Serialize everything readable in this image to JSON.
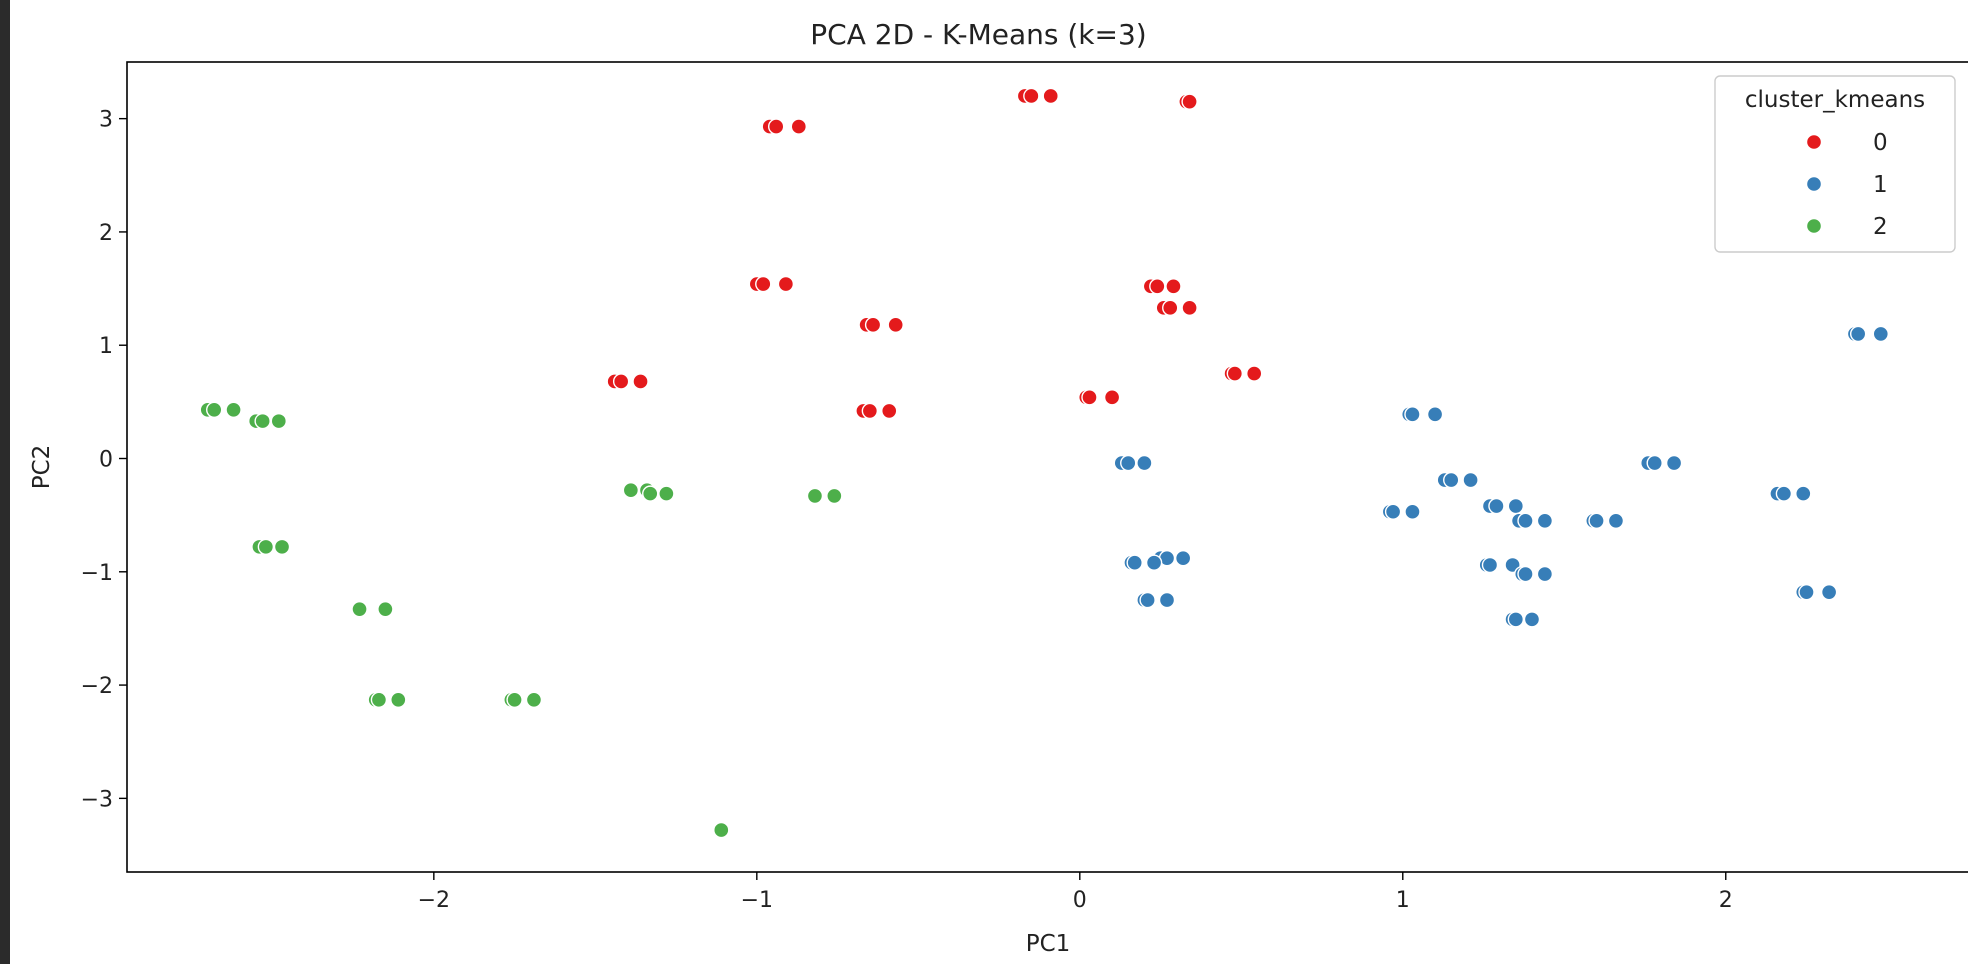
{
  "chart_data": {
    "type": "scatter",
    "title": "PCA 2D - K-Means (k=3)",
    "xlabel": "PC1",
    "ylabel": "PC2",
    "xlim": [
      -2.95,
      2.75
    ],
    "ylim": [
      -3.65,
      3.5
    ],
    "xticks": [
      -2,
      -1,
      0,
      1,
      2
    ],
    "yticks": [
      -3,
      -2,
      -1,
      0,
      1,
      2,
      3
    ],
    "xtick_labels": [
      "−2",
      "−1",
      "0",
      "1",
      "2"
    ],
    "ytick_labels": [
      "−3",
      "−2",
      "−1",
      "0",
      "1",
      "2",
      "3"
    ],
    "grid": false,
    "legend": {
      "title": "cluster_kmeans",
      "placement": "top-right",
      "entries": [
        "0",
        "1",
        "2"
      ]
    },
    "series": [
      {
        "name": "0",
        "color": "#e41a1c",
        "points": [
          [
            -0.17,
            3.2
          ],
          [
            -0.15,
            3.2
          ],
          [
            -0.09,
            3.2
          ],
          [
            0.33,
            3.15
          ],
          [
            0.34,
            3.15
          ],
          [
            -0.96,
            2.93
          ],
          [
            -0.94,
            2.93
          ],
          [
            -0.87,
            2.93
          ],
          [
            -1.0,
            1.54
          ],
          [
            -0.98,
            1.54
          ],
          [
            -0.91,
            1.54
          ],
          [
            0.22,
            1.52
          ],
          [
            0.24,
            1.52
          ],
          [
            0.29,
            1.52
          ],
          [
            0.26,
            1.33
          ],
          [
            0.28,
            1.33
          ],
          [
            0.34,
            1.33
          ],
          [
            -0.66,
            1.18
          ],
          [
            -0.64,
            1.18
          ],
          [
            -0.57,
            1.18
          ],
          [
            0.47,
            0.75
          ],
          [
            0.48,
            0.75
          ],
          [
            0.54,
            0.75
          ],
          [
            -1.44,
            0.68
          ],
          [
            -1.42,
            0.68
          ],
          [
            -1.36,
            0.68
          ],
          [
            0.02,
            0.54
          ],
          [
            0.03,
            0.54
          ],
          [
            0.1,
            0.54
          ],
          [
            -0.67,
            0.42
          ],
          [
            -0.65,
            0.42
          ],
          [
            -0.59,
            0.42
          ]
        ]
      },
      {
        "name": "1",
        "color": "#377eb8",
        "points": [
          [
            2.4,
            1.1
          ],
          [
            2.41,
            1.1
          ],
          [
            2.48,
            1.1
          ],
          [
            1.02,
            0.39
          ],
          [
            1.03,
            0.39
          ],
          [
            1.1,
            0.39
          ],
          [
            0.13,
            -0.04
          ],
          [
            0.15,
            -0.04
          ],
          [
            0.2,
            -0.04
          ],
          [
            1.76,
            -0.04
          ],
          [
            1.78,
            -0.04
          ],
          [
            1.84,
            -0.04
          ],
          [
            1.13,
            -0.19
          ],
          [
            1.15,
            -0.19
          ],
          [
            1.21,
            -0.19
          ],
          [
            2.16,
            -0.31
          ],
          [
            2.18,
            -0.31
          ],
          [
            2.24,
            -0.31
          ],
          [
            1.27,
            -0.42
          ],
          [
            1.29,
            -0.42
          ],
          [
            1.35,
            -0.42
          ],
          [
            0.96,
            -0.47
          ],
          [
            0.97,
            -0.47
          ],
          [
            1.03,
            -0.47
          ],
          [
            1.36,
            -0.55
          ],
          [
            1.38,
            -0.55
          ],
          [
            1.44,
            -0.55
          ],
          [
            1.59,
            -0.55
          ],
          [
            1.6,
            -0.55
          ],
          [
            1.66,
            -0.55
          ],
          [
            0.25,
            -0.88
          ],
          [
            0.27,
            -0.88
          ],
          [
            0.32,
            -0.88
          ],
          [
            0.16,
            -0.92
          ],
          [
            0.17,
            -0.92
          ],
          [
            0.23,
            -0.92
          ],
          [
            1.26,
            -0.94
          ],
          [
            1.27,
            -0.94
          ],
          [
            1.34,
            -0.94
          ],
          [
            1.37,
            -1.02
          ],
          [
            1.38,
            -1.02
          ],
          [
            1.44,
            -1.02
          ],
          [
            2.24,
            -1.18
          ],
          [
            2.25,
            -1.18
          ],
          [
            2.32,
            -1.18
          ],
          [
            0.2,
            -1.25
          ],
          [
            0.21,
            -1.25
          ],
          [
            0.27,
            -1.25
          ],
          [
            1.34,
            -1.42
          ],
          [
            1.35,
            -1.42
          ],
          [
            1.4,
            -1.42
          ]
        ]
      },
      {
        "name": "2",
        "color": "#4daf4a",
        "points": [
          [
            -2.7,
            0.43
          ],
          [
            -2.68,
            0.43
          ],
          [
            -2.62,
            0.43
          ],
          [
            -2.55,
            0.33
          ],
          [
            -2.53,
            0.33
          ],
          [
            -2.48,
            0.33
          ],
          [
            -1.39,
            -0.28
          ],
          [
            -1.34,
            -0.28
          ],
          [
            -1.33,
            -0.31
          ],
          [
            -1.28,
            -0.31
          ],
          [
            -0.82,
            -0.33
          ],
          [
            -0.76,
            -0.33
          ],
          [
            -2.54,
            -0.78
          ],
          [
            -2.52,
            -0.78
          ],
          [
            -2.47,
            -0.78
          ],
          [
            -2.23,
            -1.33
          ],
          [
            -2.15,
            -1.33
          ],
          [
            -2.18,
            -2.13
          ],
          [
            -2.17,
            -2.13
          ],
          [
            -2.11,
            -2.13
          ],
          [
            -1.76,
            -2.13
          ],
          [
            -1.75,
            -2.13
          ],
          [
            -1.69,
            -2.13
          ],
          [
            -1.11,
            -3.28
          ]
        ]
      }
    ]
  }
}
